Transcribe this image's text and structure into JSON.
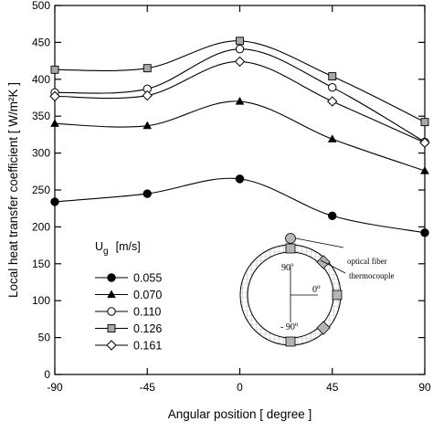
{
  "chart_data": {
    "type": "line",
    "title": "",
    "xlabel": "Angular position [ degree ]",
    "ylabel": "Local heat transfer coefficient  [ W/m²K ]",
    "x": [
      -90,
      -45,
      0,
      45,
      90
    ],
    "x_ticks": [
      "-90",
      "-45",
      "0",
      "45",
      "90"
    ],
    "y_ticks": [
      "0",
      "50",
      "100",
      "150",
      "200",
      "250",
      "300",
      "350",
      "400",
      "450",
      "500"
    ],
    "xlim": [
      -90,
      90
    ],
    "ylim": [
      0,
      500
    ],
    "grid": false,
    "legend": {
      "title_main": "U",
      "title_sub": "g",
      "title_unit": "[m/s]",
      "placement": "center-left"
    },
    "series": [
      {
        "name": "0.055",
        "marker": "filled-circle",
        "values": [
          234,
          245,
          265,
          215,
          192
        ]
      },
      {
        "name": "0.070",
        "marker": "filled-triangle",
        "values": [
          340,
          337,
          370,
          319,
          276
        ]
      },
      {
        "name": "0.110",
        "marker": "open-circle",
        "values": [
          382,
          387,
          441,
          389,
          315
        ]
      },
      {
        "name": "0.126",
        "marker": "gray-square",
        "values": [
          413,
          415,
          452,
          404,
          342
        ]
      },
      {
        "name": "0.161",
        "marker": "open-diamond",
        "values": [
          377,
          378,
          424,
          370,
          314
        ]
      }
    ],
    "inset": {
      "labels": {
        "optical_fiber": "optical fiber",
        "thermocouple": "thermocouple",
        "angle_top": "90",
        "angle_right": "0",
        "angle_bottom": "- 90",
        "degree_mark": "o"
      }
    }
  }
}
